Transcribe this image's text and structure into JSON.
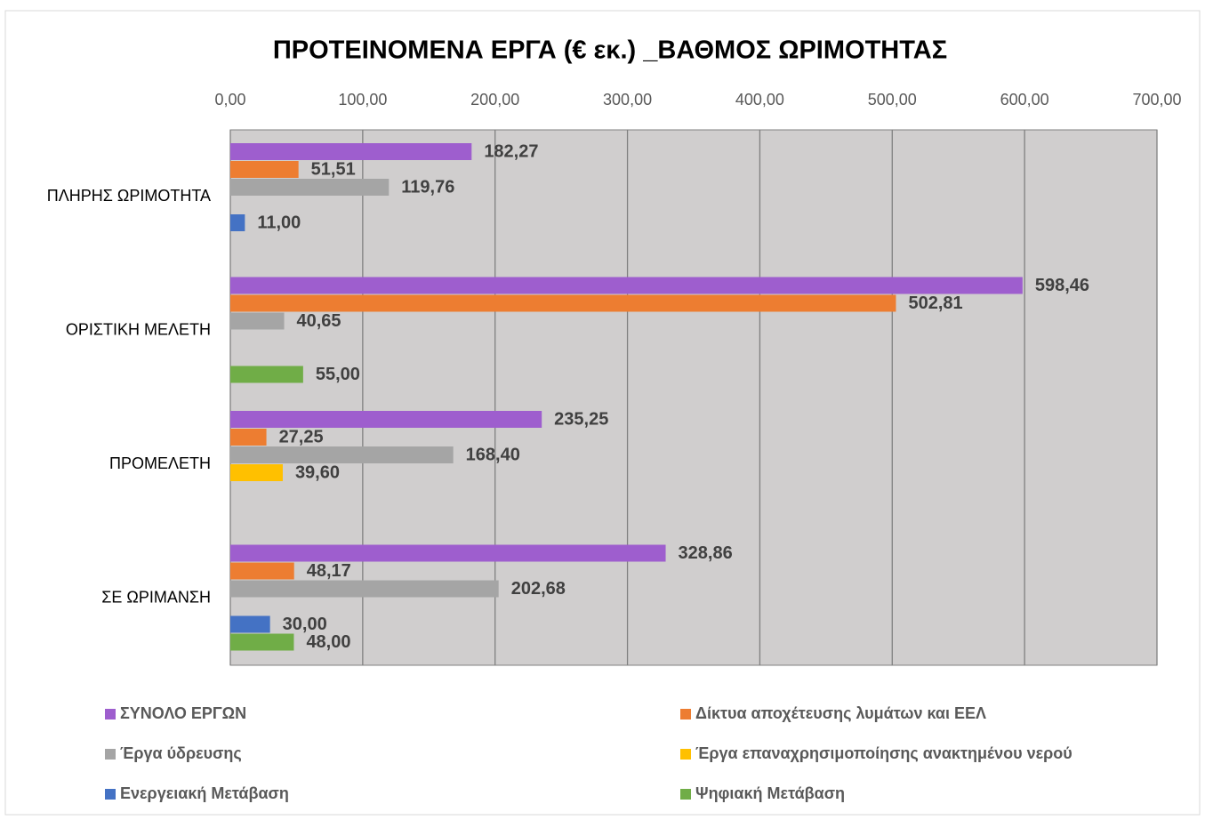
{
  "chart_data": {
    "type": "bar",
    "orientation": "horizontal",
    "title": "ΠΡΟΤΕΙΝΟΜΕΝΑ ΕΡΓΑ (€ εκ.) _ΒΑΘΜΟΣ ΩΡΙΜΟΤΗΤΑΣ",
    "categories": [
      "ΠΛΗΡΗΣ ΩΡΙΜΟΤΗΤΑ",
      "ΟΡΙΣΤΙΚΗ ΜΕΛΕΤΗ",
      "ΠΡΟΜΕΛΕΤΗ",
      "ΣΕ ΩΡΙΜΑΝΣΗ"
    ],
    "series": [
      {
        "name": "ΣΥΝΟΛΟ ΕΡΓΩΝ",
        "color": "#9E5ECE",
        "values": [
          182.27,
          598.46,
          235.25,
          328.86
        ],
        "value_labels": [
          "182,27",
          "598,46",
          "235,25",
          "328,86"
        ]
      },
      {
        "name": "Δίκτυα αποχέτευσης λυμάτων και ΕΕΛ",
        "color": "#ED7D31",
        "values": [
          51.51,
          502.81,
          27.25,
          48.17
        ],
        "value_labels": [
          "51,51",
          "502,81",
          "27,25",
          "48,17"
        ]
      },
      {
        "name": "Έργα ύδρευσης",
        "color": "#A5A5A5",
        "values": [
          119.76,
          40.65,
          168.4,
          202.68
        ],
        "value_labels": [
          "119,76",
          "40,65",
          "168,40",
          "202,68"
        ]
      },
      {
        "name": "Έργα επαναχρησιμοποίησης ανακτημένου νερού",
        "color": "#FFC000",
        "values": [
          null,
          null,
          39.6,
          null
        ],
        "value_labels": [
          null,
          null,
          "39,60",
          null
        ]
      },
      {
        "name": "Ενεργειακή Μετάβαση",
        "color": "#4472C4",
        "values": [
          11.0,
          null,
          null,
          30.0
        ],
        "value_labels": [
          "11,00",
          null,
          null,
          "30,00"
        ]
      },
      {
        "name": "Ψηφιακή Μετάβαση",
        "color": "#70AD47",
        "values": [
          null,
          55.0,
          null,
          48.0
        ],
        "value_labels": [
          null,
          "55,00",
          null,
          "48,00"
        ]
      }
    ],
    "xlim": [
      0,
      700
    ],
    "xticks": [
      {
        "value": 0,
        "label": "0,00"
      },
      {
        "value": 100,
        "label": "100,00"
      },
      {
        "value": 200,
        "label": "200,00"
      },
      {
        "value": 300,
        "label": "300,00"
      },
      {
        "value": 400,
        "label": "400,00"
      },
      {
        "value": 500,
        "label": "500,00"
      },
      {
        "value": 600,
        "label": "600,00"
      },
      {
        "value": 700,
        "label": "700,00"
      }
    ],
    "grid": true,
    "legend": "bottom"
  }
}
